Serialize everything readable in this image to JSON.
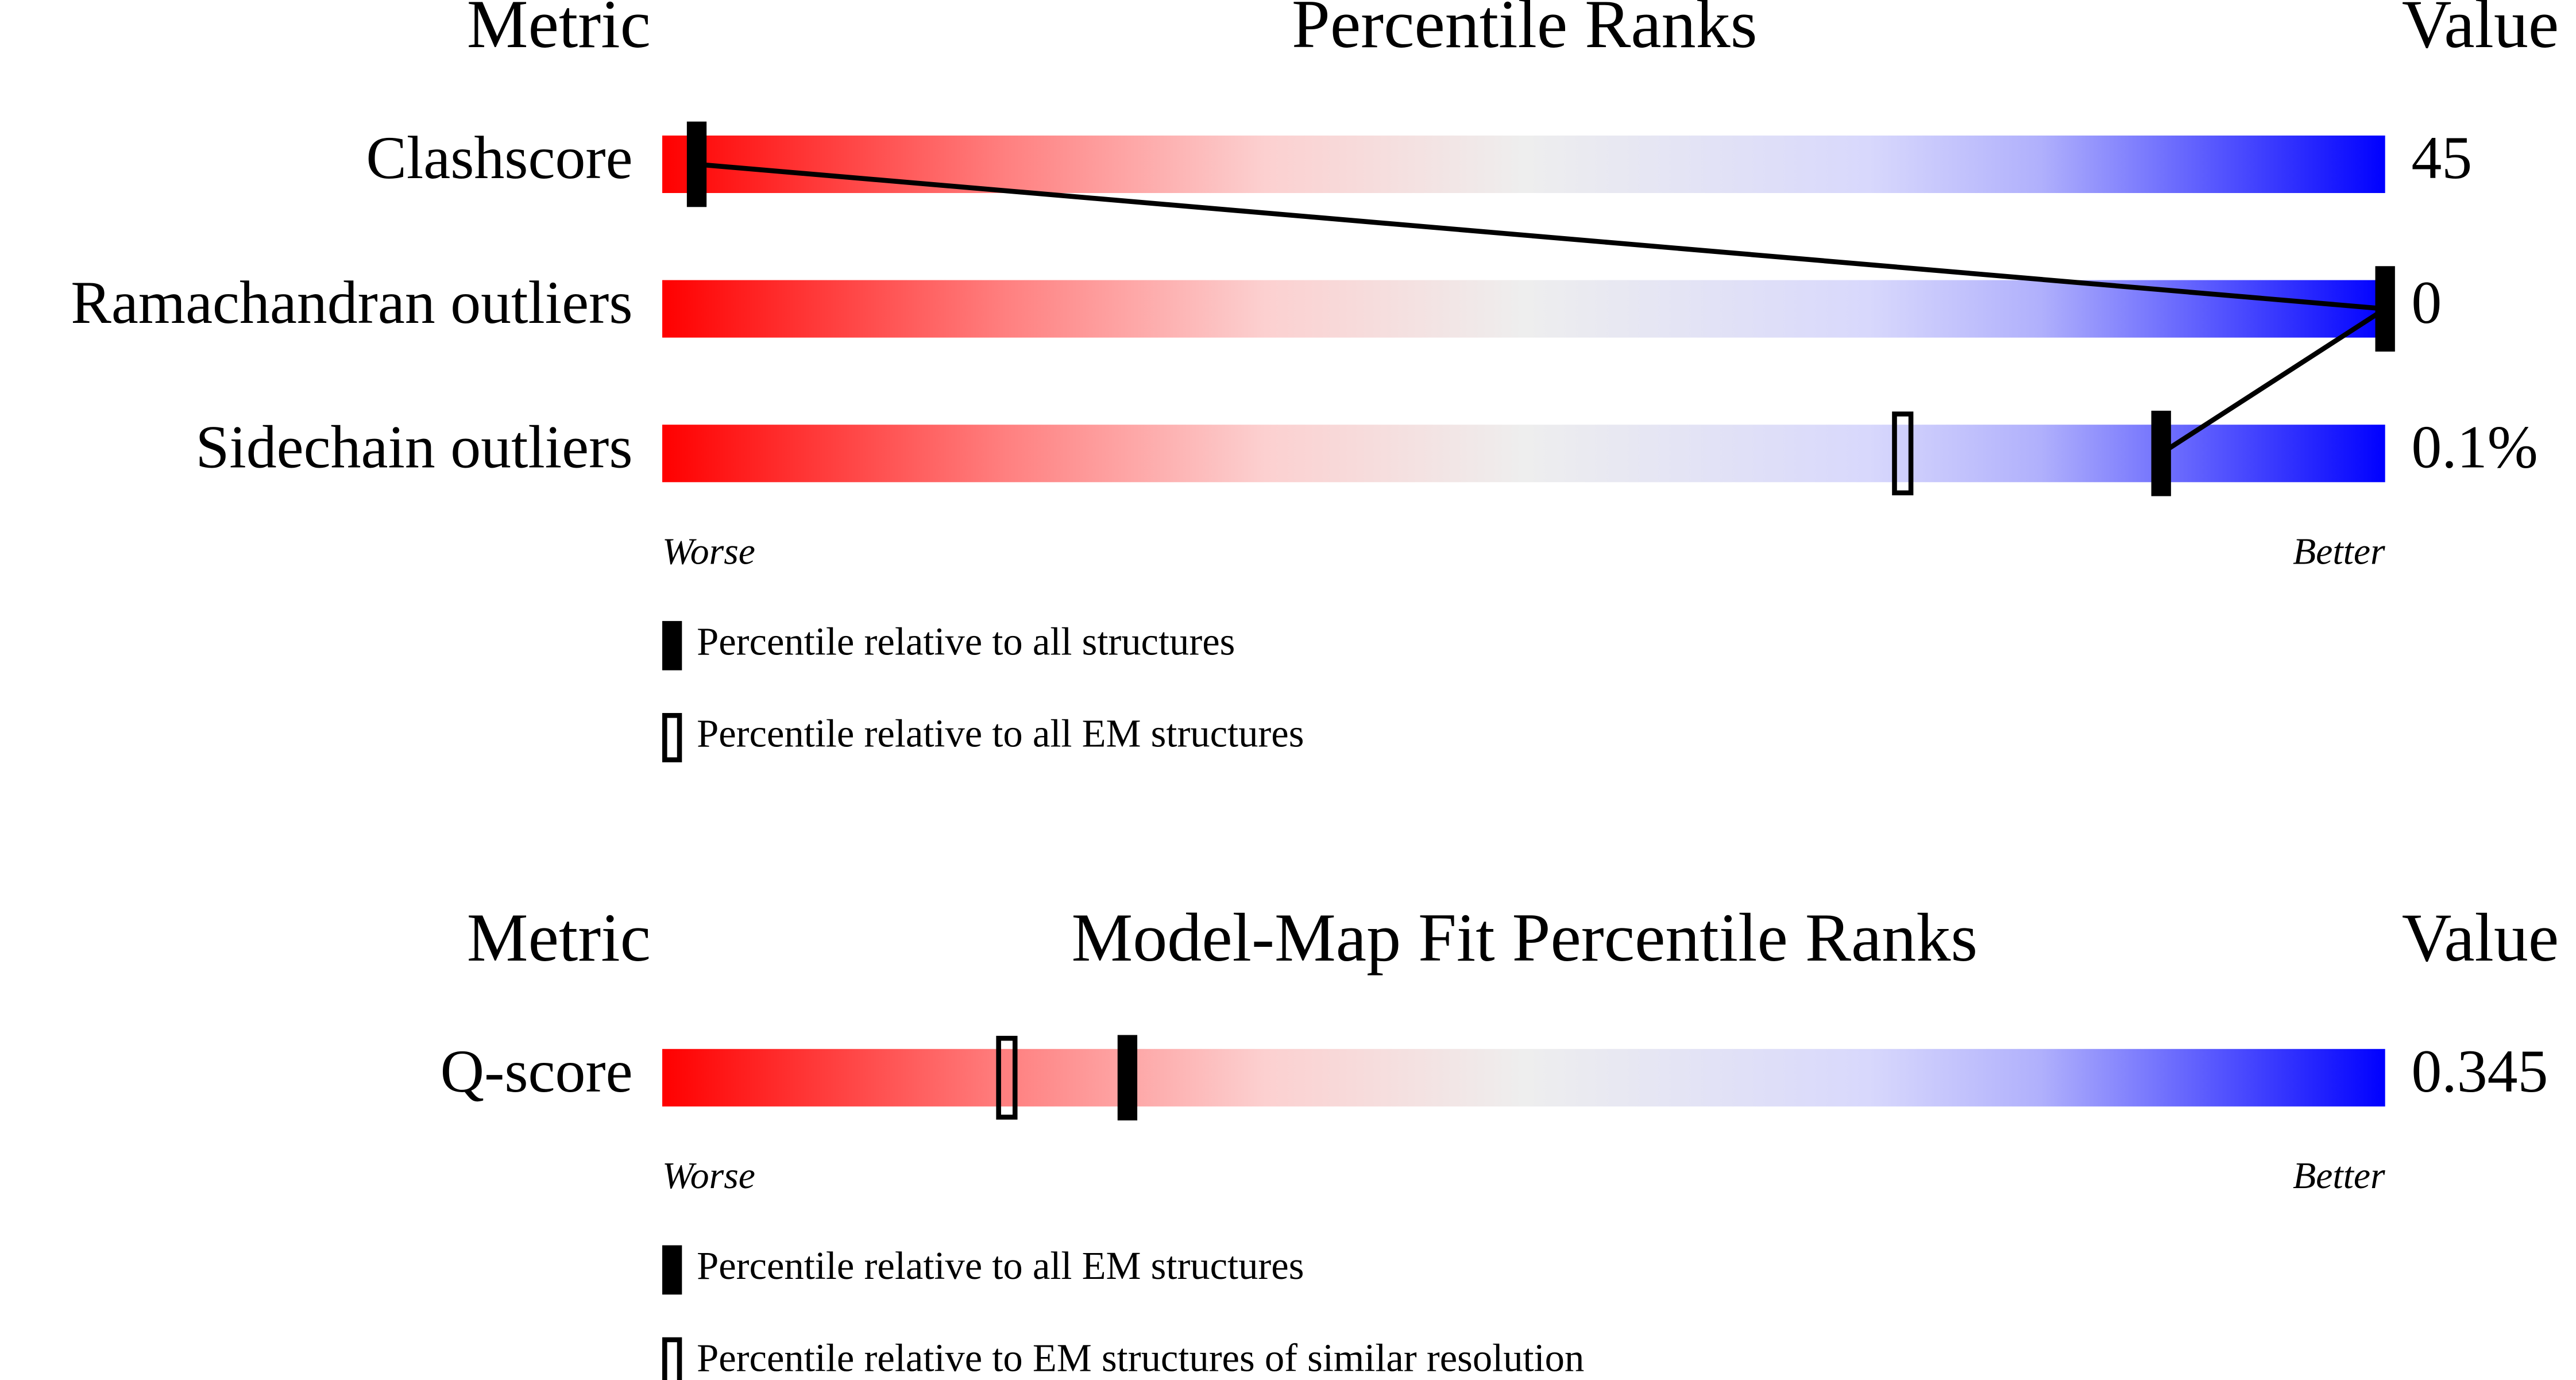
{
  "chart_data": [
    {
      "type": "percentile-slider",
      "metric_header": "Metric",
      "title": "Percentile Ranks",
      "value_header": "Value",
      "categories": [
        "Clashscore",
        "Ramachandran outliers",
        "Sidechain outliers"
      ],
      "value_labels": [
        "45",
        "0",
        "0.1%"
      ],
      "xlim": [
        0,
        100
      ],
      "xlabel_left": "Worse",
      "xlabel_right": "Better",
      "series": [
        {
          "name": "Percentile relative to all structures",
          "style": "filled",
          "color": "#000000",
          "values": [
            2,
            100,
            87
          ]
        },
        {
          "name": "Percentile relative to all EM structures",
          "style": "open",
          "color": "#000000",
          "values": [
            null,
            null,
            72
          ]
        }
      ]
    },
    {
      "type": "percentile-slider",
      "metric_header": "Metric",
      "title": "Model-Map Fit Percentile Ranks",
      "value_header": "Value",
      "categories": [
        "Q-score"
      ],
      "value_labels": [
        "0.345"
      ],
      "xlim": [
        0,
        100
      ],
      "xlabel_left": "Worse",
      "xlabel_right": "Better",
      "series": [
        {
          "name": "Percentile relative to all EM structures",
          "style": "filled",
          "color": "#000000",
          "values": [
            27
          ]
        },
        {
          "name": "Percentile relative to EM structures of similar resolution",
          "style": "open",
          "color": "#000000",
          "values": [
            20
          ]
        }
      ]
    }
  ]
}
